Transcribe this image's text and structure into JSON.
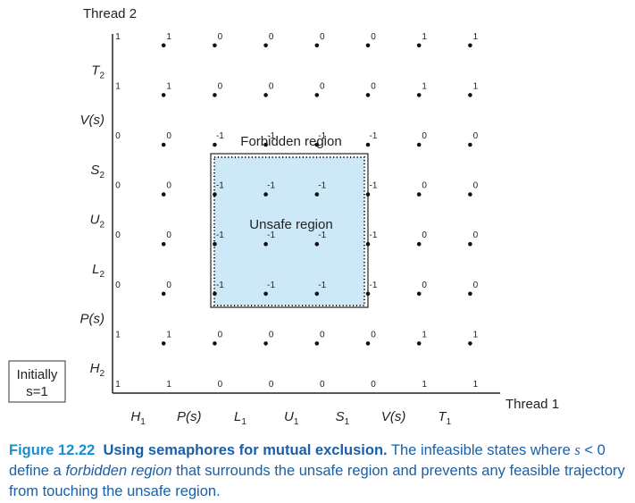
{
  "diagram": {
    "y_axis_title": "Thread 2",
    "x_axis_title": "Thread 1",
    "x_labels": [
      {
        "base": "H",
        "sub": "1"
      },
      {
        "base": "P(s)",
        "sub": ""
      },
      {
        "base": "L",
        "sub": "1"
      },
      {
        "base": "U",
        "sub": "1"
      },
      {
        "base": "S",
        "sub": "1"
      },
      {
        "base": "V(s)",
        "sub": ""
      },
      {
        "base": "T",
        "sub": "1"
      }
    ],
    "y_labels": [
      {
        "base": "H",
        "sub": "2"
      },
      {
        "base": "P(s)",
        "sub": ""
      },
      {
        "base": "L",
        "sub": "2"
      },
      {
        "base": "U",
        "sub": "2"
      },
      {
        "base": "S",
        "sub": "2"
      },
      {
        "base": "V(s)",
        "sub": ""
      },
      {
        "base": "T",
        "sub": "2"
      }
    ],
    "grid_values": [
      [
        "1",
        "1",
        "0",
        "0",
        "0",
        "0",
        "1",
        "1"
      ],
      [
        "1",
        "1",
        "0",
        "0",
        "0",
        "0",
        "1",
        "1"
      ],
      [
        "0",
        "0",
        "-1",
        "-1",
        "-1",
        "-1",
        "0",
        "0"
      ],
      [
        "0",
        "0",
        "-1",
        "-1",
        "-1",
        "-1",
        "0",
        "0"
      ],
      [
        "0",
        "0",
        "-1",
        "-1",
        "-1",
        "-1",
        "0",
        "0"
      ],
      [
        "0",
        "0",
        "-1",
        "-1",
        "-1",
        "-1",
        "0",
        "0"
      ],
      [
        "1",
        "1",
        "0",
        "0",
        "0",
        "0",
        "1",
        "1"
      ],
      [
        "1",
        "1",
        "0",
        "0",
        "0",
        "0",
        "1",
        "1"
      ]
    ],
    "forbidden_label": "Forbidden region",
    "unsafe_label": "Unsafe region",
    "initial_state_line1": "Initially",
    "initial_state_line2": "s=1",
    "unsafe_fill_color": "#cde8f7"
  },
  "caption": {
    "figure_number": "Figure 12.22",
    "title": "Using semaphores for mutual exclusion.",
    "text_1": " The infeasible states where ",
    "math_s": "s",
    "math_rel": " < 0",
    "text_2": " define a ",
    "emph_forbidden": "forbidden region",
    "text_3": " that surrounds the unsafe region and prevents any feasible trajectory from touching the unsafe region."
  }
}
